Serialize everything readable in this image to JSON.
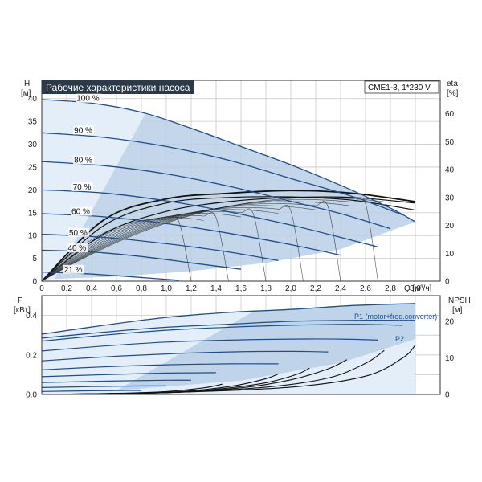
{
  "chart_data": [
    {
      "type": "line",
      "title": "Рабочие характеристики насоса",
      "model_label": "CME1-3, 1*230 V",
      "y_label_line1": "H",
      "y_label_line2": "[м]",
      "y2_label_line1": "eta",
      "y2_label_line2": "[%]",
      "x_label": "Q [м³/ч]",
      "xlim": [
        0,
        3.2
      ],
      "ylim": [
        0,
        44
      ],
      "y2lim": [
        0,
        72
      ],
      "x_ticks": [
        "0",
        "0,2",
        "0,4",
        "0,6",
        "0,8",
        "1,0",
        "1,2",
        "1,4",
        "1,6",
        "1,8",
        "2,0",
        "2,2",
        "2,4",
        "2,6",
        "2,8",
        "3,0"
      ],
      "y_ticks": [
        "0",
        "5",
        "10",
        "15",
        "20",
        "25",
        "30",
        "35",
        "40"
      ],
      "y2_ticks": [
        "0",
        "10",
        "20",
        "30",
        "40",
        "50",
        "60"
      ],
      "grid": true,
      "colors": {
        "curve": "#1f4e8c",
        "area": "#b9cfe6",
        "area_light": "#e3eef9",
        "title_bg": "#2b3a4a"
      },
      "speed_labels": [
        "100 %",
        "90 %",
        "80 %",
        "70 %",
        "60 %",
        "50 %",
        "40 %",
        "21 %"
      ],
      "speed_label_pos": [
        {
          "q": 0.15,
          "h": 40.0
        },
        {
          "q": 0.13,
          "h": 33.0
        },
        {
          "q": 0.13,
          "h": 26.5
        },
        {
          "q": 0.12,
          "h": 20.6
        },
        {
          "q": 0.11,
          "h": 15.2
        },
        {
          "q": 0.09,
          "h": 10.6
        },
        {
          "q": 0.08,
          "h": 7.2
        },
        {
          "q": 0.05,
          "h": 2.5
        }
      ],
      "series": [
        {
          "values_q": [
            0,
            0.4,
            0.8,
            1.2,
            1.6,
            2.0,
            2.4,
            2.8,
            3.0
          ],
          "values_h": [
            39.8,
            39.0,
            37.0,
            33.5,
            29.5,
            25.5,
            21.0,
            16.0,
            13.0
          ]
        },
        {
          "values_q": [
            0,
            0.5,
            1.0,
            1.5,
            2.0,
            2.5,
            2.9
          ],
          "values_h": [
            32.5,
            31.5,
            29.5,
            26.5,
            22.5,
            18.5,
            14.5
          ]
        },
        {
          "values_q": [
            0,
            0.5,
            1.0,
            1.5,
            2.0,
            2.4,
            2.8
          ],
          "values_h": [
            26.2,
            25.3,
            23.5,
            20.8,
            17.5,
            14.8,
            11.5
          ]
        },
        {
          "values_q": [
            0,
            0.5,
            1.0,
            1.5,
            2.0,
            2.4,
            2.7
          ],
          "values_h": [
            20.0,
            19.3,
            17.6,
            15.2,
            12.3,
            9.6,
            7.5
          ]
        },
        {
          "values_q": [
            0,
            0.5,
            1.0,
            1.5,
            2.0,
            2.4
          ],
          "values_h": [
            14.8,
            14.1,
            12.6,
            10.5,
            8.0,
            5.7
          ]
        },
        {
          "values_q": [
            0,
            0.5,
            1.0,
            1.5,
            1.9
          ],
          "values_h": [
            10.3,
            9.6,
            8.2,
            6.4,
            4.5
          ]
        },
        {
          "values_q": [
            0,
            0.4,
            0.8,
            1.2,
            1.6
          ],
          "values_h": [
            6.8,
            6.4,
            5.4,
            4.0,
            2.6
          ]
        },
        {
          "values_q": [
            0,
            0.3,
            0.6,
            0.9,
            1.1
          ],
          "values_h": [
            2.0,
            1.7,
            1.2,
            0.6,
            0.2
          ]
        }
      ],
      "eta_series": [
        {
          "values_q": [
            0,
            0.5,
            1.0,
            1.5,
            2.0,
            2.5,
            3.0
          ],
          "values_eta": [
            0,
            17,
            25,
            28.5,
            30,
            30,
            28
          ]
        },
        {
          "values_q": [
            0,
            0.5,
            1.0,
            1.5,
            2.0,
            2.5,
            3.0
          ],
          "values_eta": [
            0,
            22,
            29.5,
            31.5,
            32.5,
            31.5,
            28.5
          ]
        },
        {
          "values_q": [
            0,
            0.5,
            1.0,
            1.5,
            2.0,
            2.5,
            3.0
          ],
          "values_eta": [
            0,
            20,
            28,
            30,
            30.2,
            29,
            25.5
          ]
        }
      ]
    },
    {
      "type": "line",
      "y_label_line1": "P",
      "y_label_line2": "[кВт]",
      "y2_label_line1": "NPSH",
      "y2_label_line2": "[м]",
      "xlim": [
        0,
        3.2
      ],
      "ylim": [
        0,
        0.5
      ],
      "y2lim": [
        0,
        27
      ],
      "y_ticks": [
        "0.0",
        "0.2",
        "0.4"
      ],
      "y2_ticks": [
        "0",
        "10",
        "20"
      ],
      "series_names": [
        "P1 (motor+freq.converter)",
        "P2"
      ],
      "p1_top": {
        "values_q": [
          0,
          0.5,
          1.0,
          1.5,
          2.0,
          2.5,
          3.0
        ],
        "values_p": [
          0.305,
          0.35,
          0.39,
          0.415,
          0.43,
          0.45,
          0.46
        ]
      },
      "p2_top": {
        "values_q": [
          0,
          0.5,
          1.0,
          1.5,
          2.0,
          2.5,
          3.0
        ],
        "values_p": [
          0.285,
          0.315,
          0.34,
          0.355,
          0.37,
          0.375,
          0.375
        ]
      },
      "power_curves": [
        {
          "values_q": [
            0,
            0.5,
            1.0,
            1.5,
            2.0,
            2.5,
            2.9
          ],
          "values_p": [
            0.27,
            0.3,
            0.325,
            0.34,
            0.35,
            0.355,
            0.35
          ]
        },
        {
          "values_q": [
            0,
            0.5,
            1.0,
            1.5,
            2.0,
            2.4,
            2.7
          ],
          "values_p": [
            0.22,
            0.245,
            0.265,
            0.275,
            0.28,
            0.28,
            0.275
          ]
        },
        {
          "values_q": [
            0,
            0.5,
            1.0,
            1.5,
            2.0,
            2.3
          ],
          "values_p": [
            0.17,
            0.19,
            0.205,
            0.215,
            0.218,
            0.215
          ]
        },
        {
          "values_q": [
            0,
            0.5,
            1.0,
            1.5,
            1.9
          ],
          "values_p": [
            0.125,
            0.14,
            0.15,
            0.155,
            0.155
          ]
        },
        {
          "values_q": [
            0,
            0.5,
            1.0,
            1.4
          ],
          "values_p": [
            0.09,
            0.1,
            0.108,
            0.11
          ]
        },
        {
          "values_q": [
            0,
            0.5,
            1.0,
            1.2
          ],
          "values_p": [
            0.06,
            0.067,
            0.072,
            0.072
          ]
        },
        {
          "values_q": [
            0,
            0.4,
            0.8,
            1.0
          ],
          "values_p": [
            0.035,
            0.04,
            0.043,
            0.043
          ]
        },
        {
          "values_q": [
            0,
            0.3,
            0.6,
            0.8
          ],
          "values_p": [
            0.015,
            0.018,
            0.02,
            0.02
          ]
        }
      ],
      "npsh_curves": [
        {
          "values_q": [
            0,
            1.0,
            2.0,
            2.6,
            2.9,
            3.0
          ],
          "values_npsh": [
            0,
            0.5,
            2.0,
            5.0,
            10.0,
            13.5
          ]
        },
        {
          "values_q": [
            0,
            1.0,
            1.8,
            2.3,
            2.6,
            2.75
          ],
          "values_npsh": [
            0,
            0.5,
            2.0,
            4.5,
            8.5,
            12.0
          ]
        },
        {
          "values_q": [
            0,
            1.0,
            1.6,
            2.0,
            2.3,
            2.45
          ],
          "values_npsh": [
            0,
            0.5,
            1.8,
            4.0,
            7.0,
            9.5
          ]
        },
        {
          "values_q": [
            0,
            1.0,
            1.4,
            1.8,
            2.05,
            2.15
          ],
          "values_npsh": [
            0,
            0.5,
            1.4,
            3.2,
            5.5,
            7.2
          ]
        },
        {
          "values_q": [
            0,
            0.8,
            1.2,
            1.55,
            1.8,
            1.9
          ],
          "values_npsh": [
            0,
            0.4,
            1.0,
            2.4,
            4.3,
            5.6
          ]
        },
        {
          "values_q": [
            0,
            0.6,
            1.0,
            1.3,
            1.45
          ],
          "values_npsh": [
            0,
            0.3,
            0.8,
            1.8,
            2.8
          ]
        }
      ]
    }
  ]
}
